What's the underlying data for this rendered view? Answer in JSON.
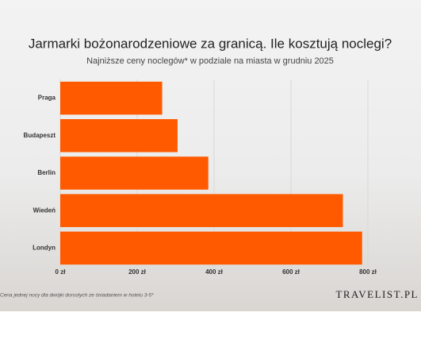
{
  "chart_data": {
    "type": "barh",
    "title": "Jarmarki bożonarodzeniowe za granicą. Ile kosztują noclegi?",
    "subtitle": "Najniższe ceny noclegów* w podziale na miasta w grudniu 2025",
    "categories": [
      "Praga",
      "Budapeszt",
      "Berlin",
      "Wiedeń",
      "Londyn"
    ],
    "values": [
      265,
      305,
      385,
      735,
      785
    ],
    "color": "#ff5a00",
    "xlim": [
      0,
      800
    ],
    "xticks": [
      {
        "value": 0,
        "label": "0 zł"
      },
      {
        "value": 200,
        "label": "200 zł"
      },
      {
        "value": 400,
        "label": "400 zł"
      },
      {
        "value": 600,
        "label": "600 zł"
      },
      {
        "value": 800,
        "label": "800 zł"
      }
    ],
    "grid": true,
    "footnote": "Cena jednej nocy dla dwójki dorosłych ze śniadaniem w hotelu 3-5*",
    "logo": "TRAVELIST.PL"
  }
}
